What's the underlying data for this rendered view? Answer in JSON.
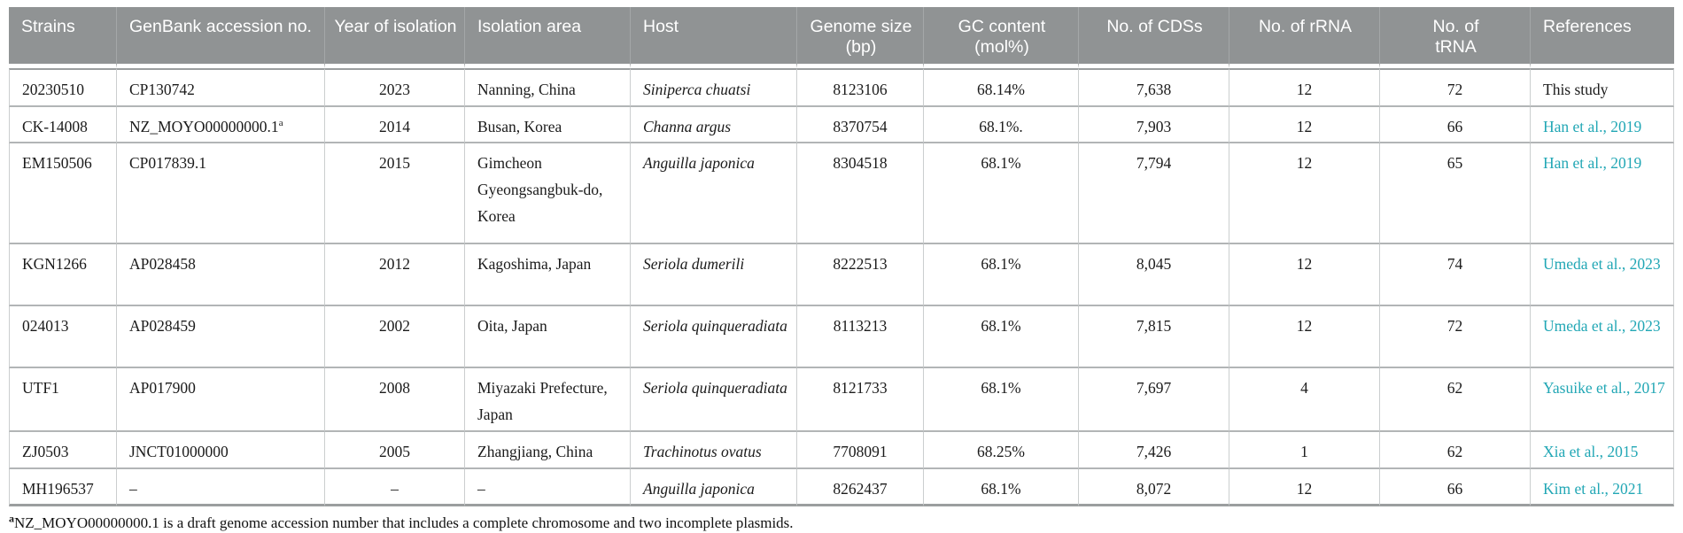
{
  "colors": {
    "header_bg": "#909394",
    "header_separator": "#a4a7a8",
    "link": "#22a7b5",
    "grid_vertical": "#cbcecf",
    "grid_horizontal": "#b2b5b6",
    "table_edge": "#9b9e9f",
    "body_text": "#1b1b1b"
  },
  "table": {
    "columns": [
      {
        "label": "Strains",
        "align": "left"
      },
      {
        "label": "GenBank accession no.",
        "align": "left"
      },
      {
        "label": "Year of isolation",
        "align": "center"
      },
      {
        "label": "Isolation area",
        "align": "left"
      },
      {
        "label": "Host",
        "align": "left"
      },
      {
        "label": "Genome size (bp)",
        "align": "center"
      },
      {
        "label": "GC content (mol%)",
        "align": "center"
      },
      {
        "label": "No. of CDSs",
        "align": "center"
      },
      {
        "label": "No. of rRNA",
        "align": "center"
      },
      {
        "label": "No. of tRNA",
        "align": "center"
      },
      {
        "label": "References",
        "align": "left"
      }
    ],
    "rows": [
      {
        "strain": "20230510",
        "accession": "CP130742",
        "accession_sup": "",
        "year": "2023",
        "area": "Nanning, China",
        "host": "Siniperca chuatsi",
        "genome_size": "8123106",
        "gc_content": "68.14%",
        "cds": "7,638",
        "rrna": "12",
        "trna": "72",
        "reference": "This study",
        "reference_is_link": false
      },
      {
        "strain": "CK-14008",
        "accession": "NZ_MOYO00000000.1",
        "accession_sup": "a",
        "year": "2014",
        "area": "Busan, Korea",
        "host": "Channa argus",
        "genome_size": "8370754",
        "gc_content": "68.1%.",
        "cds": "7,903",
        "rrna": "12",
        "trna": "66",
        "reference": "Han et al., 2019",
        "reference_is_link": true
      },
      {
        "strain": "EM150506",
        "accession": "CP017839.1",
        "accession_sup": "",
        "year": "2015",
        "area": "Gimcheon Gyeongsangbuk-do, Korea",
        "host": "Anguilla japonica",
        "genome_size": "8304518",
        "gc_content": "68.1%",
        "cds": "7,794",
        "rrna": "12",
        "trna": "65",
        "reference": "Han et al., 2019",
        "reference_is_link": true
      },
      {
        "strain": "KGN1266",
        "accession": "AP028458",
        "accession_sup": "",
        "year": "2012",
        "area": "Kagoshima, Japan",
        "host": "Seriola dumerili",
        "genome_size": "8222513",
        "gc_content": "68.1%",
        "cds": "8,045",
        "rrna": "12",
        "trna": "74",
        "reference": "Umeda et al., 2023",
        "reference_is_link": true
      },
      {
        "strain": "024013",
        "accession": "AP028459",
        "accession_sup": "",
        "year": "2002",
        "area": "Oita, Japan",
        "host": "Seriola quinqueradiata",
        "genome_size": "8113213",
        "gc_content": "68.1%",
        "cds": "7,815",
        "rrna": "12",
        "trna": "72",
        "reference": "Umeda et al., 2023",
        "reference_is_link": true
      },
      {
        "strain": "UTF1",
        "accession": "AP017900",
        "accession_sup": "",
        "year": "2008",
        "area": "Miyazaki Prefecture, Japan",
        "host": "Seriola quinqueradiata",
        "genome_size": "8121733",
        "gc_content": "68.1%",
        "cds": "7,697",
        "rrna": "4",
        "trna": "62",
        "reference": "Yasuike et al., 2017",
        "reference_is_link": true
      },
      {
        "strain": "ZJ0503",
        "accession": "JNCT01000000",
        "accession_sup": "",
        "year": "2005",
        "area": "Zhangjiang, China",
        "host": "Trachinotus ovatus",
        "genome_size": "7708091",
        "gc_content": "68.25%",
        "cds": "7,426",
        "rrna": "1",
        "trna": "62",
        "reference": "Xia et al., 2015",
        "reference_is_link": true
      },
      {
        "strain": "MH196537",
        "accession": "–",
        "accession_sup": "",
        "year": "–",
        "area": "–",
        "host": "Anguilla japonica",
        "genome_size": "8262437",
        "gc_content": "68.1%",
        "cds": "8,072",
        "rrna": "12",
        "trna": "66",
        "reference": "Kim et al., 2021",
        "reference_is_link": true
      }
    ]
  },
  "footnote": {
    "marker": "a",
    "text": "NZ_MOYO00000000.1 is a draft genome accession number that includes a complete chromosome and two incomplete plasmids."
  }
}
